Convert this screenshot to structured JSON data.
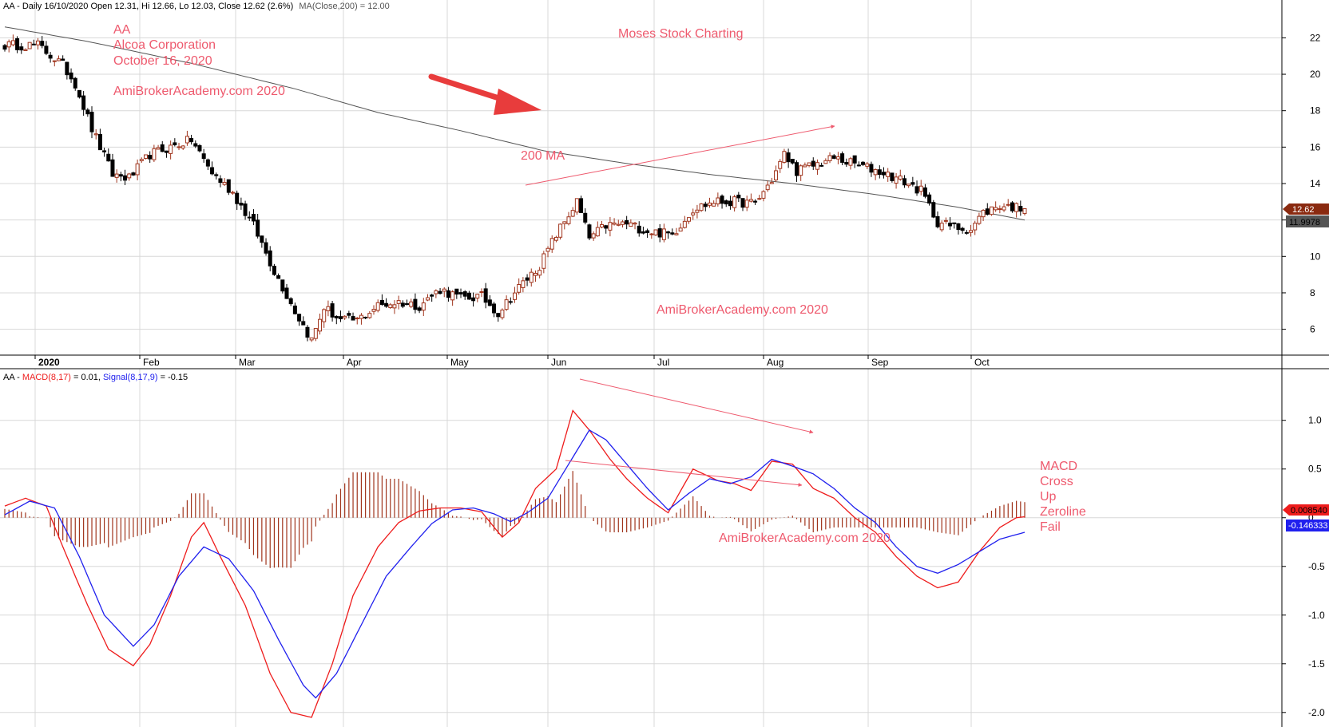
{
  "price_pane": {
    "header": {
      "prefix": "AA - Daily 16/10/2020 Open 12.31, Hi 12.66, Lo 12.03, Close 12.62 (2.6%)",
      "ma_label": "MA(Close,200) = 12.00"
    },
    "annotations": {
      "ticker": "AA",
      "company": "Alcoa Corporation",
      "date": "October 16, 2020",
      "site_1": "AmiBrokerAcademy.com  2020",
      "moses": "Moses Stock Charting",
      "ma_note": "200 MA",
      "site_2": "AmiBrokerAcademy.com  2020"
    },
    "price_badge": "12.62",
    "ma_badge": "11.9978"
  },
  "macd_pane": {
    "header": {
      "prefix": "AA - ",
      "macd_label": "MACD(8,17)",
      "macd_value": " = 0.01, ",
      "signal_label": "Signal(8,17,9)",
      "signal_value": " = -0.15"
    },
    "annotations": {
      "site": "AmiBrokerAcademy.com 2020",
      "note_lines": [
        "MACD",
        "Cross",
        "Up",
        "Zeroline",
        "Fail"
      ]
    },
    "macd_badge": "0.008540",
    "signal_badge": "-0.146333"
  },
  "colors": {
    "up_candle": "#a0341c",
    "down_candle": "#000000",
    "ma_line": "#555555",
    "macd_line": "#ee1c1c",
    "signal_line": "#2020ee",
    "histogram": "#a0341c",
    "annotation": "#ee5a6e",
    "grid": "#d8d8d8"
  },
  "chart_data": [
    {
      "type": "candlestick",
      "symbol": "AA",
      "ylim": [
        4.8,
        23.2
      ],
      "yticks": [
        6,
        8,
        10,
        12,
        14,
        16,
        18,
        20,
        22
      ],
      "xlabels": [
        "2020",
        "Feb",
        "Mar",
        "Apr",
        "May",
        "Jun",
        "Jul",
        "Aug",
        "Sep",
        "Oct"
      ],
      "grid": true,
      "knots": [
        [
          0,
          21.6
        ],
        [
          8,
          21.6
        ],
        [
          14,
          20.5
        ],
        [
          17,
          19.5
        ],
        [
          21,
          17.0
        ],
        [
          26,
          14.5
        ],
        [
          30,
          14.3
        ],
        [
          35,
          15.6
        ],
        [
          40,
          16.0
        ],
        [
          45,
          16.4
        ],
        [
          50,
          14.6
        ],
        [
          55,
          13.5
        ],
        [
          60,
          11.7
        ],
        [
          65,
          9.2
        ],
        [
          70,
          7.0
        ],
        [
          74,
          5.4
        ],
        [
          77,
          7.2
        ],
        [
          81,
          6.5
        ],
        [
          85,
          6.5
        ],
        [
          90,
          7.3
        ],
        [
          95,
          7.5
        ],
        [
          100,
          7.3
        ],
        [
          105,
          8.2
        ],
        [
          110,
          7.7
        ],
        [
          115,
          7.8
        ],
        [
          119,
          6.9
        ],
        [
          124,
          8.3
        ],
        [
          129,
          9.5
        ],
        [
          133,
          11.2
        ],
        [
          138,
          13.0
        ],
        [
          141,
          11.0
        ],
        [
          145,
          11.7
        ],
        [
          150,
          11.8
        ],
        [
          155,
          11.4
        ],
        [
          161,
          11.2
        ],
        [
          166,
          12.6
        ],
        [
          171,
          13.0
        ],
        [
          176,
          13.0
        ],
        [
          181,
          12.9
        ],
        [
          185,
          14.2
        ],
        [
          188,
          15.6
        ],
        [
          191,
          14.7
        ],
        [
          195,
          15.0
        ],
        [
          200,
          15.4
        ],
        [
          206,
          15.0
        ],
        [
          212,
          14.6
        ],
        [
          217,
          14.1
        ],
        [
          221,
          13.6
        ],
        [
          225,
          11.9
        ],
        [
          229,
          11.6
        ],
        [
          233,
          11.5
        ],
        [
          236,
          12.4
        ],
        [
          240,
          12.8
        ],
        [
          244,
          12.7
        ],
        [
          246,
          12.6
        ]
      ],
      "ma_200": [
        [
          0,
          22.6
        ],
        [
          20,
          21.8
        ],
        [
          45,
          20.6
        ],
        [
          70,
          19.2
        ],
        [
          90,
          17.9
        ],
        [
          110,
          16.9
        ],
        [
          130,
          15.8
        ],
        [
          150,
          15.1
        ],
        [
          170,
          14.5
        ],
        [
          190,
          14.0
        ],
        [
          210,
          13.4
        ],
        [
          230,
          12.7
        ],
        [
          246,
          12.0
        ]
      ],
      "last_close": 12.62,
      "ma_last": 11.9978
    },
    {
      "type": "line",
      "title": "MACD(8,17) / Signal(8,17,9)",
      "ylim": [
        -2.1,
        1.35
      ],
      "yticks": [
        1.0,
        0.5,
        0,
        -0.5,
        -1.0,
        -1.5,
        -2.0
      ],
      "ytick_labels": [
        "1.0",
        "0.5",
        "0",
        "-0.5",
        "-1.0",
        "-1.5",
        "-2.0"
      ],
      "series": [
        {
          "name": "MACD(8,17)",
          "points": [
            [
              0,
              0.12
            ],
            [
              5,
              0.2
            ],
            [
              10,
              0.12
            ],
            [
              14,
              -0.3
            ],
            [
              20,
              -0.9
            ],
            [
              25,
              -1.35
            ],
            [
              31,
              -1.52
            ],
            [
              35,
              -1.3
            ],
            [
              40,
              -0.8
            ],
            [
              45,
              -0.2
            ],
            [
              48,
              -0.05
            ],
            [
              52,
              -0.4
            ],
            [
              58,
              -0.9
            ],
            [
              64,
              -1.6
            ],
            [
              69,
              -2.0
            ],
            [
              74,
              -2.05
            ],
            [
              79,
              -1.5
            ],
            [
              84,
              -0.8
            ],
            [
              90,
              -0.3
            ],
            [
              95,
              -0.05
            ],
            [
              100,
              0.07
            ],
            [
              105,
              0.1
            ],
            [
              110,
              0.1
            ],
            [
              115,
              0.06
            ],
            [
              120,
              -0.2
            ],
            [
              124,
              -0.05
            ],
            [
              128,
              0.3
            ],
            [
              133,
              0.5
            ],
            [
              137,
              1.1
            ],
            [
              141,
              0.9
            ],
            [
              146,
              0.6
            ],
            [
              150,
              0.4
            ],
            [
              155,
              0.2
            ],
            [
              160,
              0.05
            ],
            [
              166,
              0.5
            ],
            [
              172,
              0.38
            ],
            [
              176,
              0.35
            ],
            [
              180,
              0.28
            ],
            [
              185,
              0.58
            ],
            [
              190,
              0.55
            ],
            [
              195,
              0.3
            ],
            [
              200,
              0.2
            ],
            [
              205,
              0.0
            ],
            [
              210,
              -0.15
            ],
            [
              215,
              -0.4
            ],
            [
              220,
              -0.6
            ],
            [
              225,
              -0.72
            ],
            [
              230,
              -0.66
            ],
            [
              235,
              -0.35
            ],
            [
              240,
              -0.1
            ],
            [
              244,
              0.0
            ],
            [
              246,
              0.01
            ]
          ]
        },
        {
          "name": "Signal(8,17,9)",
          "points": [
            [
              0,
              0.03
            ],
            [
              6,
              0.17
            ],
            [
              12,
              0.1
            ],
            [
              18,
              -0.4
            ],
            [
              24,
              -1.0
            ],
            [
              31,
              -1.32
            ],
            [
              36,
              -1.1
            ],
            [
              42,
              -0.6
            ],
            [
              48,
              -0.3
            ],
            [
              54,
              -0.42
            ],
            [
              60,
              -0.75
            ],
            [
              66,
              -1.25
            ],
            [
              72,
              -1.72
            ],
            [
              75,
              -1.85
            ],
            [
              80,
              -1.6
            ],
            [
              86,
              -1.1
            ],
            [
              92,
              -0.6
            ],
            [
              98,
              -0.3
            ],
            [
              103,
              -0.06
            ],
            [
              108,
              0.08
            ],
            [
              113,
              0.1
            ],
            [
              118,
              0.04
            ],
            [
              122,
              -0.04
            ],
            [
              126,
              0.05
            ],
            [
              131,
              0.2
            ],
            [
              136,
              0.55
            ],
            [
              141,
              0.9
            ],
            [
              145,
              0.8
            ],
            [
              150,
              0.55
            ],
            [
              155,
              0.3
            ],
            [
              160,
              0.08
            ],
            [
              165,
              0.25
            ],
            [
              170,
              0.4
            ],
            [
              175,
              0.35
            ],
            [
              180,
              0.42
            ],
            [
              185,
              0.6
            ],
            [
              190,
              0.53
            ],
            [
              195,
              0.45
            ],
            [
              200,
              0.3
            ],
            [
              205,
              0.1
            ],
            [
              210,
              -0.05
            ],
            [
              215,
              -0.3
            ],
            [
              220,
              -0.5
            ],
            [
              225,
              -0.57
            ],
            [
              230,
              -0.48
            ],
            [
              235,
              -0.35
            ],
            [
              240,
              -0.22
            ],
            [
              246,
              -0.15
            ]
          ]
        }
      ],
      "histogram": "macd minus signal per bar"
    }
  ]
}
